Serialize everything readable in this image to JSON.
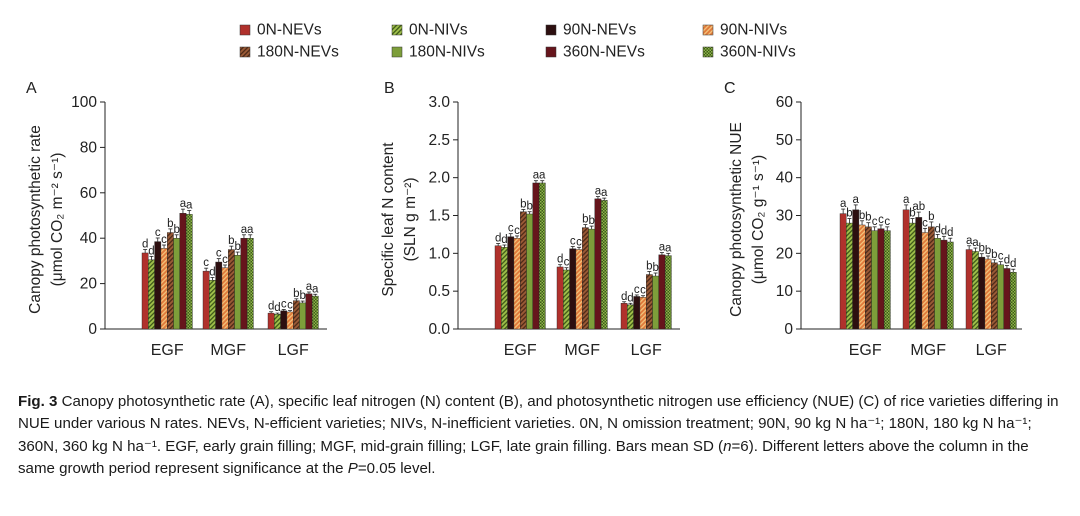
{
  "legend": [
    {
      "label": "0N-NEVs",
      "fill": "#b0312c",
      "pattern": "solid"
    },
    {
      "label": "0N-NIVs",
      "fill": "#8db040",
      "pattern": "stripe-dark"
    },
    {
      "label": "90N-NEVs",
      "fill": "#2d0f10",
      "pattern": "solid"
    },
    {
      "label": "90N-NIVs",
      "fill": "#d2602f",
      "pattern": "stripe-light"
    },
    {
      "label": "180N-NEVs",
      "fill": "#8c4a2e",
      "pattern": "stripe-dark"
    },
    {
      "label": "180N-NIVs",
      "fill": "#7d9e3a",
      "pattern": "solid"
    },
    {
      "label": "360N-NEVs",
      "fill": "#66151c",
      "pattern": "solid"
    },
    {
      "label": "360N-NIVs",
      "fill": "#4a6a1f",
      "pattern": "check"
    }
  ],
  "chart_data": [
    {
      "panel": "A",
      "type": "bar",
      "ylabel_lines": [
        "Canopy photosynthetic rate",
        "(μmol CO₂ m⁻² s⁻¹)"
      ],
      "ylim": [
        0,
        100
      ],
      "yticks": [
        "0",
        "20",
        "40",
        "60",
        "80",
        "100"
      ],
      "categories": [
        "EGF",
        "MGF",
        "LGF"
      ],
      "values": [
        [
          33.5,
          30.5,
          38.5,
          35.5,
          42.5,
          40.0,
          51.0,
          50.5
        ],
        [
          25.5,
          21.5,
          29.5,
          27.0,
          35.0,
          32.5,
          40.0,
          40.0
        ],
        [
          7.0,
          6.5,
          8.0,
          7.5,
          12.5,
          11.5,
          15.5,
          14.5
        ]
      ],
      "errors": [
        [
          1.5,
          1.5,
          1.6,
          1.5,
          1.6,
          1.5,
          1.8,
          1.7
        ],
        [
          1.3,
          1.2,
          1.5,
          1.2,
          1.5,
          1.4,
          1.5,
          1.5
        ],
        [
          0.6,
          0.5,
          0.6,
          0.6,
          0.8,
          0.8,
          0.8,
          0.8
        ]
      ],
      "letters": [
        [
          "d",
          "d",
          "c",
          "c",
          "b",
          "b",
          "a",
          "a"
        ],
        [
          "c",
          "d",
          "c",
          "c",
          "b",
          "b",
          "a",
          "a"
        ],
        [
          "d",
          "d",
          "c",
          "c",
          "b",
          "b",
          "a",
          "a"
        ]
      ]
    },
    {
      "panel": "B",
      "type": "bar",
      "ylabel_lines": [
        "Specific leaf N content",
        "(SLN g m⁻²)"
      ],
      "ylim": [
        0,
        3.0
      ],
      "yticks": [
        "0.0",
        "0.5",
        "1.0",
        "1.5",
        "2.0",
        "2.5",
        "3.0"
      ],
      "categories": [
        "EGF",
        "MGF",
        "LGF"
      ],
      "values": [
        [
          1.1,
          1.08,
          1.22,
          1.2,
          1.55,
          1.52,
          1.93,
          1.93
        ],
        [
          0.82,
          0.78,
          1.06,
          1.05,
          1.34,
          1.32,
          1.72,
          1.7
        ],
        [
          0.34,
          0.32,
          0.43,
          0.42,
          0.72,
          0.7,
          0.98,
          0.97
        ]
      ],
      "errors": [
        [
          0.03,
          0.03,
          0.04,
          0.03,
          0.03,
          0.03,
          0.03,
          0.03
        ],
        [
          0.03,
          0.03,
          0.03,
          0.03,
          0.04,
          0.04,
          0.03,
          0.03
        ],
        [
          0.02,
          0.02,
          0.02,
          0.02,
          0.04,
          0.04,
          0.03,
          0.03
        ]
      ],
      "letters": [
        [
          "d",
          "d",
          "c",
          "c",
          "b",
          "b",
          "a",
          "a"
        ],
        [
          "d",
          "c",
          "c",
          "c",
          "b",
          "b",
          "a",
          "a"
        ],
        [
          "d",
          "d",
          "c",
          "c",
          "b",
          "b",
          "a",
          "a"
        ]
      ]
    },
    {
      "panel": "C",
      "type": "bar",
      "ylabel_lines": [
        "Canopy photosynthetic NUE",
        "(μmol CO₂ g⁻¹ s⁻¹)"
      ],
      "ylim": [
        0,
        60
      ],
      "yticks": [
        "0",
        "10",
        "20",
        "30",
        "40",
        "50",
        "60"
      ],
      "categories": [
        "EGF",
        "MGF",
        "LGF"
      ],
      "values": [
        [
          30.5,
          28.0,
          31.5,
          27.5,
          27.0,
          26.0,
          26.5,
          26.0
        ],
        [
          31.5,
          28.0,
          29.5,
          25.5,
          27.0,
          24.0,
          23.5,
          23.0
        ],
        [
          21.0,
          20.5,
          19.0,
          18.5,
          17.5,
          17.0,
          16.0,
          15.0
        ]
      ],
      "errors": [
        [
          1.2,
          1.2,
          1.3,
          1.1,
          1.1,
          1.0,
          1.0,
          1.0
        ],
        [
          1.3,
          1.2,
          1.4,
          1.1,
          1.3,
          1.0,
          1.0,
          1.0
        ],
        [
          1.0,
          0.9,
          0.9,
          0.8,
          0.8,
          0.8,
          0.8,
          0.8
        ]
      ],
      "letters": [
        [
          "a",
          "b",
          "a",
          "b",
          "b",
          "c",
          "c",
          "c"
        ],
        [
          "a",
          "b",
          "ab",
          "c",
          "b",
          "d",
          "d",
          "d"
        ],
        [
          "a",
          "a",
          "b",
          "b",
          "b",
          "c",
          "d",
          "d"
        ]
      ]
    }
  ],
  "caption": {
    "fig_label": "Fig. 3",
    "line1": "Canopy photosynthetic rate (A), specific leaf nitrogen (N) content (B), and photosynthetic nitrogen use efficiency (NUE) (C) of rice varieties differing in NUE under various N rates.  NEVs, N-efficient varieties; NIVs, N-inefficient varieties.  0N, N omission treatment; 90N, 90 kg N ha⁻¹; 180N, 180 kg N ha⁻¹; 360N, 360 kg N ha⁻¹.  EGF, early grain filling; MGF, mid-grain filling; LGF, late grain filling.  Bars mean SD (",
    "n_italic": "n",
    "line1b": "=6).  Different letters above the column in the same growth period represent significance at the ",
    "p_italic": "P",
    "line1c": "=0.05 level."
  }
}
